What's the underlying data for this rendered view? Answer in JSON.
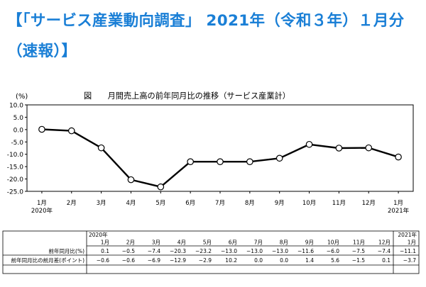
{
  "headline": "【「サービス産業動向調査」 2021年（令和３年）１月分（速報）】",
  "chart_data": {
    "type": "line",
    "title": "図　　月間売上高の前年同月比の推移（サービス産業計）",
    "ylabel": "(%)",
    "ylim": [
      -25,
      10
    ],
    "yticks": [
      "10.0",
      "5.0",
      "0.0",
      "-5.0",
      "-10.0",
      "-15.0",
      "-20.0",
      "-25.0"
    ],
    "grid": false,
    "categories": [
      "1月",
      "2月",
      "3月",
      "4月",
      "5月",
      "6月",
      "7月",
      "8月",
      "9月",
      "10月",
      "11月",
      "12月",
      "1月"
    ],
    "year_labels": [
      "2020年",
      "",
      "",
      "",
      "",
      "",
      "",
      "",
      "",
      "",
      "",
      "",
      "2021年"
    ],
    "series": [
      {
        "values": [
          0.1,
          -0.5,
          -7.4,
          -20.3,
          -23.2,
          -13.0,
          -13.0,
          -13.0,
          -11.6,
          -6.0,
          -7.5,
          -7.4,
          -11.1
        ]
      }
    ],
    "line_color": "#000000",
    "marker_fill": "#ffffff"
  },
  "table": {
    "year_start": "2020年",
    "year_end": "2021年",
    "months": [
      "1月",
      "2月",
      "3月",
      "4月",
      "5月",
      "6月",
      "7月",
      "8月",
      "9月",
      "10月",
      "11月",
      "12月",
      "1月"
    ],
    "rows": [
      {
        "label": "前年同月比(%)",
        "values": [
          "0.1",
          "−0.5",
          "−7.4",
          "−20.3",
          "−23.2",
          "−13.0",
          "−13.0",
          "−13.0",
          "−11.6",
          "−6.0",
          "−7.5",
          "−7.4",
          "−11.1"
        ]
      },
      {
        "label": "前年同月比の前月差(ポイント)",
        "values": [
          "−0.6",
          "−0.6",
          "−6.9",
          "−12.9",
          "−2.9",
          "10.2",
          "0.0",
          "0.0",
          "1.4",
          "5.6",
          "−1.5",
          "0.1",
          "−3.7"
        ]
      }
    ]
  }
}
